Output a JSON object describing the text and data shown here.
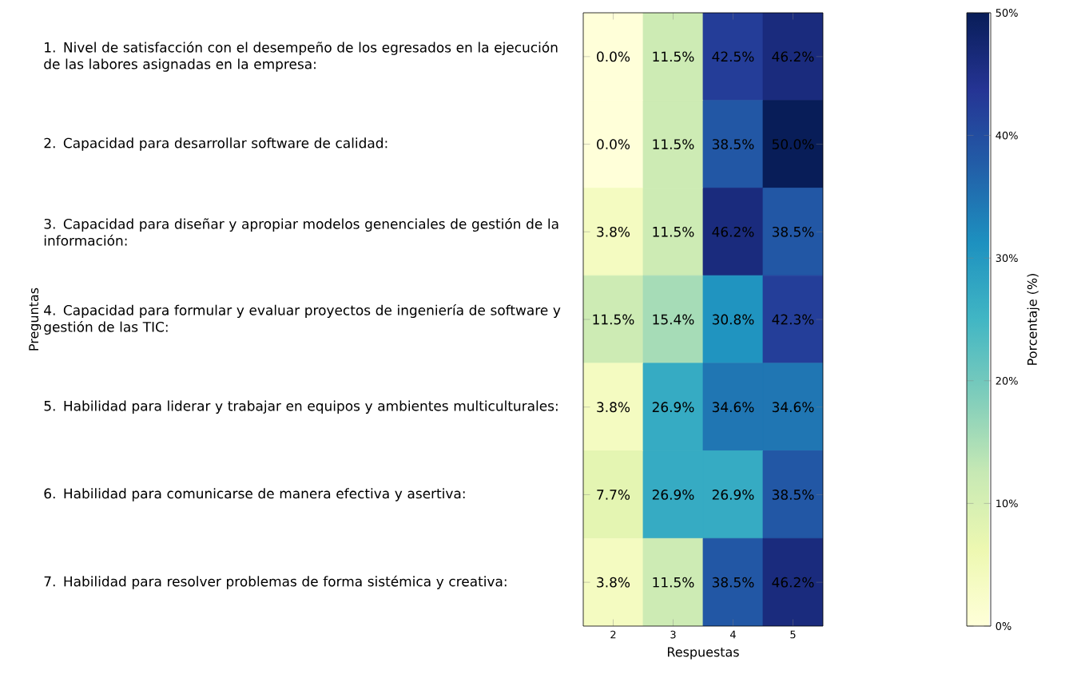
{
  "chart_data": {
    "type": "heatmap",
    "xlabel": "Respuestas",
    "ylabel": "Preguntas",
    "clabel": "Porcentaje (%)",
    "categories": [
      "2",
      "3",
      "4",
      "5"
    ],
    "y_categories": [
      "1. Nivel de satisfacción con el desempeño de los egresados en la ejecución de las labores asignadas en la empresa:",
      "2. Capacidad para desarrollar software de calidad:",
      "3. Capacidad para diseñar y apropiar modelos genenciales de gestión de la información:",
      "4. Capacidad para formular y evaluar proyectos de ingeniería de software y gestión de las TIC:",
      "5. Habilidad para liderar y trabajar en equipos y ambientes multiculturales:",
      "6. Habilidad para comunicarse de manera efectiva y asertiva:",
      "7. Habilidad para resolver problemas de forma sistémica y creativa:"
    ],
    "cells": [
      [
        0.0,
        11.5,
        42.5,
        46.2
      ],
      [
        0.0,
        11.5,
        38.5,
        50.0
      ],
      [
        3.8,
        11.5,
        46.2,
        38.5
      ],
      [
        11.5,
        15.4,
        30.8,
        42.3
      ],
      [
        3.8,
        26.9,
        34.6,
        34.6
      ],
      [
        7.7,
        26.9,
        26.9,
        38.5
      ],
      [
        3.8,
        11.5,
        38.5,
        46.2
      ]
    ],
    "cell_labels": [
      [
        "0.0%",
        "11.5%",
        "42.5%",
        "46.2%"
      ],
      [
        "0.0%",
        "11.5%",
        "38.5%",
        "50.0%"
      ],
      [
        "3.8%",
        "11.5%",
        "46.2%",
        "38.5%"
      ],
      [
        "11.5%",
        "15.4%",
        "30.8%",
        "42.3%"
      ],
      [
        "3.8%",
        "26.9%",
        "34.6%",
        "34.6%"
      ],
      [
        "7.7%",
        "26.9%",
        "26.9%",
        "38.5%"
      ],
      [
        "3.8%",
        "11.5%",
        "38.5%",
        "46.2%"
      ]
    ],
    "clim": [
      0,
      50
    ],
    "cticks": [
      {
        "value": 0,
        "label": "0%"
      },
      {
        "value": 10,
        "label": "10%"
      },
      {
        "value": 20,
        "label": "20%"
      },
      {
        "value": 30,
        "label": "30%"
      },
      {
        "value": 40,
        "label": "40%"
      },
      {
        "value": 50,
        "label": "50%"
      }
    ]
  }
}
